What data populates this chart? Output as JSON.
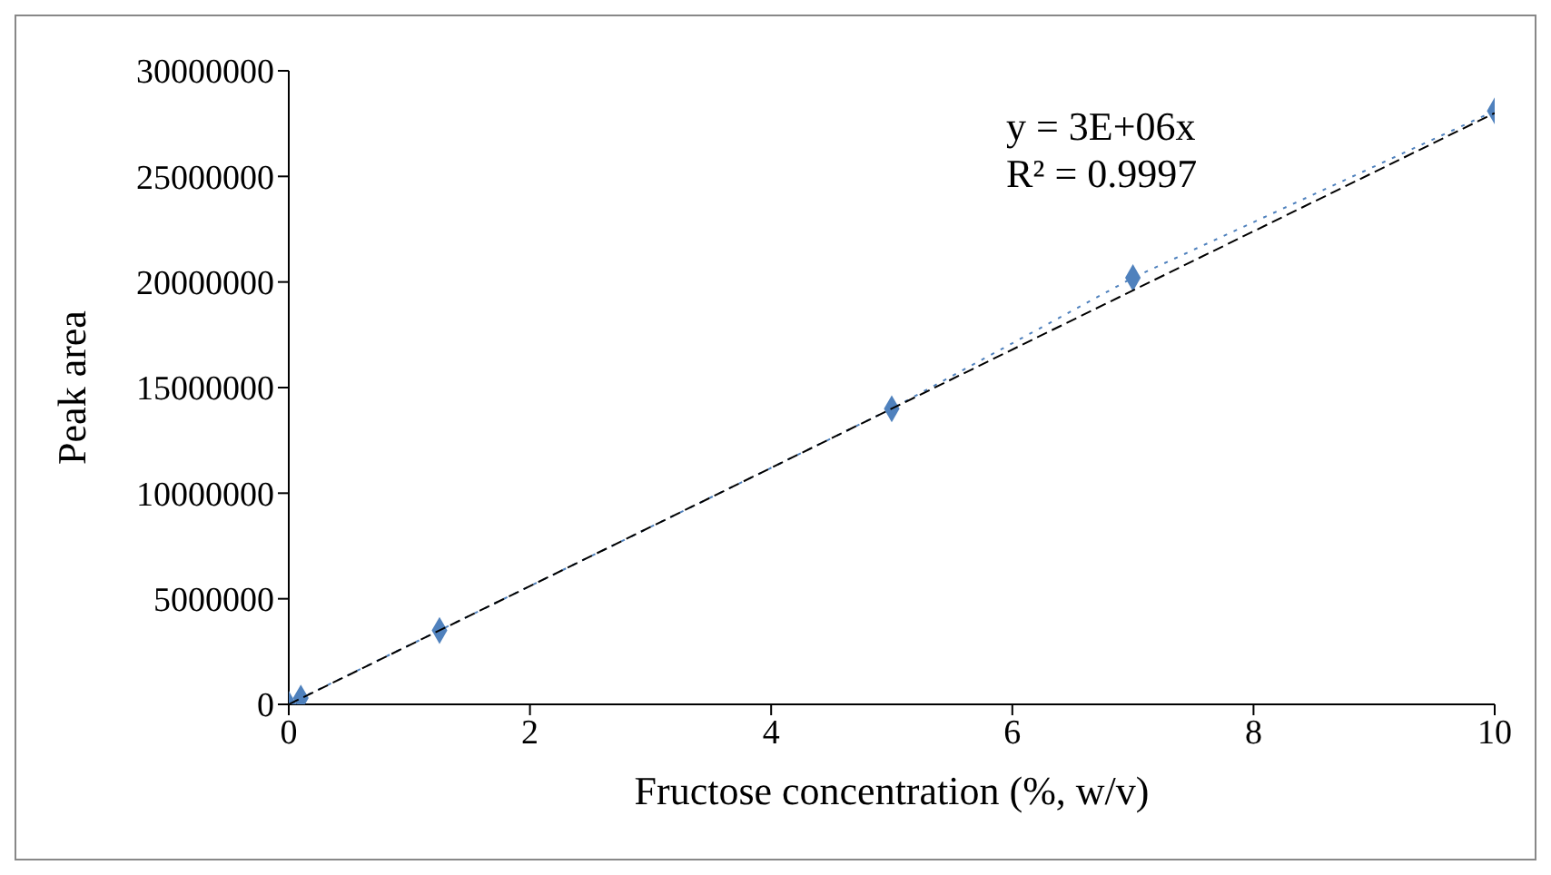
{
  "chart_data": {
    "type": "line",
    "xlabel": "Fructose concentration (%, w/v)",
    "ylabel": "Peak area",
    "series": [
      {
        "color": "#4f81bd",
        "marker": "diamond",
        "line_style": "dotted",
        "x": [
          0,
          0.1,
          1.25,
          5,
          7,
          10
        ],
        "values": [
          0,
          300000,
          3500000,
          14000000,
          20200000,
          28100000
        ]
      },
      {
        "color": "#000000",
        "marker": "none",
        "line_style": "dashed",
        "x": [
          0,
          10
        ],
        "values": [
          0,
          28000000
        ]
      }
    ],
    "annotations": [
      "y = 3E+06x",
      "R² = 0.9997"
    ],
    "xlim": [
      0,
      10
    ],
    "xticks": [
      0,
      2,
      4,
      6,
      8,
      10
    ],
    "ylim": [
      0,
      30000000
    ],
    "yticks": [
      0,
      5000000,
      10000000,
      15000000,
      20000000,
      25000000,
      30000000
    ],
    "grid": false
  }
}
